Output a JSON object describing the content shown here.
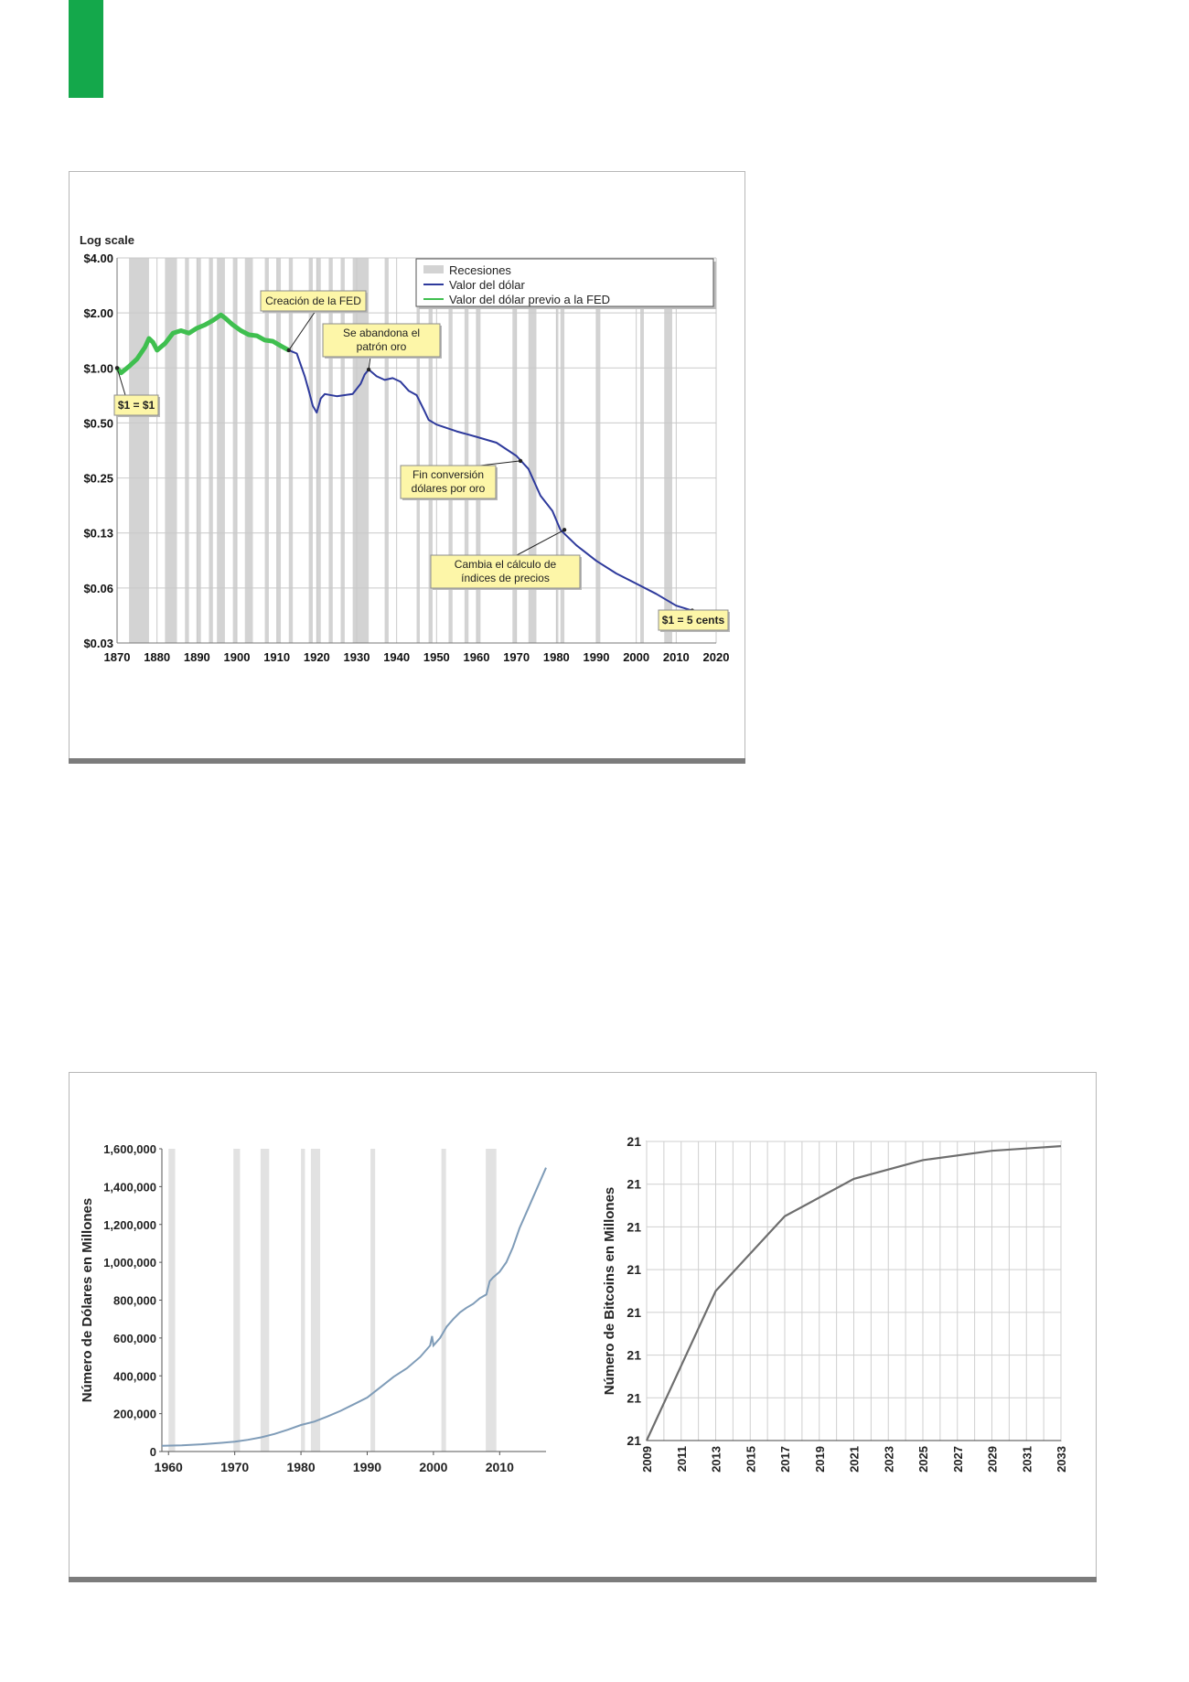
{
  "theme": {
    "accent": "#14a84b",
    "recession": "#d3d3d3",
    "dollar_line": "#2e3a9c",
    "prefed_line": "#3fbf4f",
    "chart2_line": "#7f9cb8",
    "chart3_line": "#6e6e6e"
  },
  "chart_data": [
    {
      "type": "line",
      "title": "",
      "ylabel": "Log scale",
      "xlabel": "",
      "log_scale": true,
      "ylim": [
        0.03,
        4.0
      ],
      "xlim": [
        1870,
        2020
      ],
      "y_ticks": [
        "$4.00",
        "$2.00",
        "$1.00",
        "$0.50",
        "$0.25",
        "$0.13",
        "$0.06",
        "$0.03"
      ],
      "y_tick_values": [
        4.0,
        2.0,
        1.0,
        0.5,
        0.25,
        0.125,
        0.0625,
        0.03125
      ],
      "x_ticks": [
        "1870",
        "1880",
        "1890",
        "1900",
        "1910",
        "1920",
        "1930",
        "1940",
        "1950",
        "1960",
        "1970",
        "1980",
        "1990",
        "2000",
        "2010",
        "2020"
      ],
      "x_tick_values": [
        1870,
        1880,
        1890,
        1900,
        1910,
        1920,
        1930,
        1940,
        1950,
        1960,
        1970,
        1980,
        1990,
        2000,
        2010,
        2020
      ],
      "legend": {
        "placement": "top-right",
        "entries": [
          "Recesiones",
          "Valor del dólar",
          "Valor del dólar previo a la FED"
        ]
      },
      "recessions": [
        [
          1873,
          1878
        ],
        [
          1882,
          1885
        ],
        [
          1887,
          1888
        ],
        [
          1890,
          1891
        ],
        [
          1893,
          1894
        ],
        [
          1895,
          1897
        ],
        [
          1899,
          1900
        ],
        [
          1902,
          1904
        ],
        [
          1907,
          1908
        ],
        [
          1910,
          1911
        ],
        [
          1913,
          1914
        ],
        [
          1918,
          1919
        ],
        [
          1920,
          1921
        ],
        [
          1923,
          1924
        ],
        [
          1926,
          1927
        ],
        [
          1929,
          1933
        ],
        [
          1937,
          1938
        ],
        [
          1945,
          1945.8
        ],
        [
          1948,
          1949
        ],
        [
          1953,
          1954
        ],
        [
          1957,
          1958
        ],
        [
          1960,
          1961
        ],
        [
          1969,
          1970
        ],
        [
          1973,
          1975
        ],
        [
          1980,
          1980.5
        ],
        [
          1981,
          1982
        ],
        [
          1990,
          1991
        ],
        [
          2001,
          2001.9
        ],
        [
          2007,
          2009
        ]
      ],
      "series": [
        {
          "name": "Valor del dólar previo a la FED",
          "color": "#3fbf4f",
          "x": [
            1870,
            1871,
            1873,
            1875,
            1877,
            1878,
            1879,
            1880,
            1882,
            1884,
            1886,
            1888,
            1890,
            1892,
            1894,
            1896,
            1897,
            1899,
            1901,
            1903,
            1905,
            1907,
            1909,
            1911,
            1913
          ],
          "y": [
            1.0,
            0.94,
            1.02,
            1.12,
            1.3,
            1.45,
            1.38,
            1.25,
            1.36,
            1.55,
            1.6,
            1.55,
            1.65,
            1.72,
            1.82,
            1.95,
            1.88,
            1.72,
            1.6,
            1.52,
            1.5,
            1.42,
            1.4,
            1.32,
            1.25
          ]
        },
        {
          "name": "Valor del dólar",
          "color": "#2e3a9c",
          "x": [
            1913,
            1915,
            1917,
            1918,
            1919,
            1920,
            1921,
            1922,
            1925,
            1929,
            1931,
            1932,
            1933,
            1935,
            1937,
            1939,
            1941,
            1943,
            1945,
            1947,
            1948,
            1950,
            1955,
            1960,
            1965,
            1970,
            1973,
            1976,
            1979,
            1981,
            1985,
            1990,
            1995,
            2000,
            2005,
            2010,
            2014
          ],
          "y": [
            1.25,
            1.2,
            0.9,
            0.75,
            0.62,
            0.57,
            0.68,
            0.72,
            0.7,
            0.72,
            0.82,
            0.92,
            0.98,
            0.9,
            0.86,
            0.88,
            0.84,
            0.75,
            0.71,
            0.58,
            0.52,
            0.49,
            0.45,
            0.42,
            0.39,
            0.33,
            0.28,
            0.2,
            0.165,
            0.13,
            0.107,
            0.088,
            0.075,
            0.066,
            0.058,
            0.05,
            0.047
          ]
        }
      ],
      "annotations": [
        {
          "label": "$1 = $1",
          "x": 1870,
          "y": 1.0
        },
        {
          "label": "Creación de la FED",
          "x": 1913,
          "y": 1.25
        },
        {
          "label": "Se abandona el patrón oro",
          "x": 1933,
          "y": 0.98
        },
        {
          "label": "Fin conversión dólares por oro",
          "x": 1971,
          "y": 0.31
        },
        {
          "label": "Cambia el cálculo de índices de precios",
          "x": 1982,
          "y": 0.13
        },
        {
          "label": "$1 = 5 cents",
          "x": 2014,
          "y": 0.047
        }
      ]
    },
    {
      "type": "line",
      "title": "",
      "xlabel": "",
      "ylabel": "Número de Dólares en Millones",
      "ylim": [
        0,
        1600000
      ],
      "xlim": [
        1959,
        2017
      ],
      "y_ticks": [
        "1,600,000",
        "1,400,000",
        "1,200,000",
        "1,000,000",
        "800,000",
        "600,000",
        "400,000",
        "200,000",
        "0"
      ],
      "y_tick_values": [
        1600000,
        1400000,
        1200000,
        1000000,
        800000,
        600000,
        400000,
        200000,
        0
      ],
      "x_ticks": [
        "1960",
        "1970",
        "1980",
        "1990",
        "2000",
        "2010"
      ],
      "x_tick_values": [
        1960,
        1970,
        1980,
        1990,
        2000,
        2010
      ],
      "recessions": [
        [
          1960,
          1961
        ],
        [
          1969.8,
          1970.8
        ],
        [
          1973.9,
          1975.2
        ],
        [
          1980,
          1980.6
        ],
        [
          1981.5,
          1982.9
        ],
        [
          1990.5,
          1991.2
        ],
        [
          2001.2,
          2001.9
        ],
        [
          2007.9,
          2009.5
        ]
      ],
      "series": [
        {
          "name": "",
          "color": "#7f9cb8",
          "x": [
            1959,
            1962,
            1965,
            1968,
            1970,
            1972,
            1974,
            1976,
            1978,
            1980,
            1982,
            1984,
            1986,
            1988,
            1990,
            1992,
            1994,
            1996,
            1998,
            1999.5,
            1999.8,
            2000,
            2001,
            2002,
            2003,
            2004,
            2005,
            2006,
            2007,
            2008,
            2008.5,
            2009,
            2010,
            2011,
            2012,
            2013,
            2014,
            2015,
            2016,
            2017
          ],
          "y": [
            30000,
            33000,
            38000,
            46000,
            52000,
            62000,
            75000,
            93000,
            115000,
            140000,
            158000,
            185000,
            215000,
            250000,
            285000,
            340000,
            395000,
            440000,
            500000,
            560000,
            610000,
            560000,
            600000,
            660000,
            700000,
            735000,
            760000,
            780000,
            810000,
            830000,
            900000,
            920000,
            950000,
            1000000,
            1080000,
            1180000,
            1260000,
            1340000,
            1420000,
            1500000
          ]
        }
      ]
    },
    {
      "type": "line",
      "title": "",
      "xlabel": "",
      "ylabel": "Número de Bitcoins en Millones",
      "y_ticks": [
        "21",
        "21",
        "21",
        "21",
        "21",
        "21",
        "21",
        "21"
      ],
      "x_ticks": [
        "2009",
        "2011",
        "2013",
        "2015",
        "2017",
        "2019",
        "2021",
        "2023",
        "2025",
        "2027",
        "2029",
        "2031",
        "2033"
      ],
      "x_tick_values": [
        2009,
        2011,
        2013,
        2015,
        2017,
        2019,
        2021,
        2023,
        2025,
        2027,
        2029,
        2031,
        2033
      ],
      "xlim": [
        2009,
        2033
      ],
      "ylim": [
        0,
        21
      ],
      "series": [
        {
          "name": "",
          "color": "#6e6e6e",
          "x": [
            2009,
            2013,
            2017,
            2021,
            2025,
            2029,
            2033
          ],
          "y": [
            0,
            10.5,
            15.75,
            18.375,
            19.6875,
            20.34375,
            20.671875
          ]
        }
      ]
    }
  ]
}
